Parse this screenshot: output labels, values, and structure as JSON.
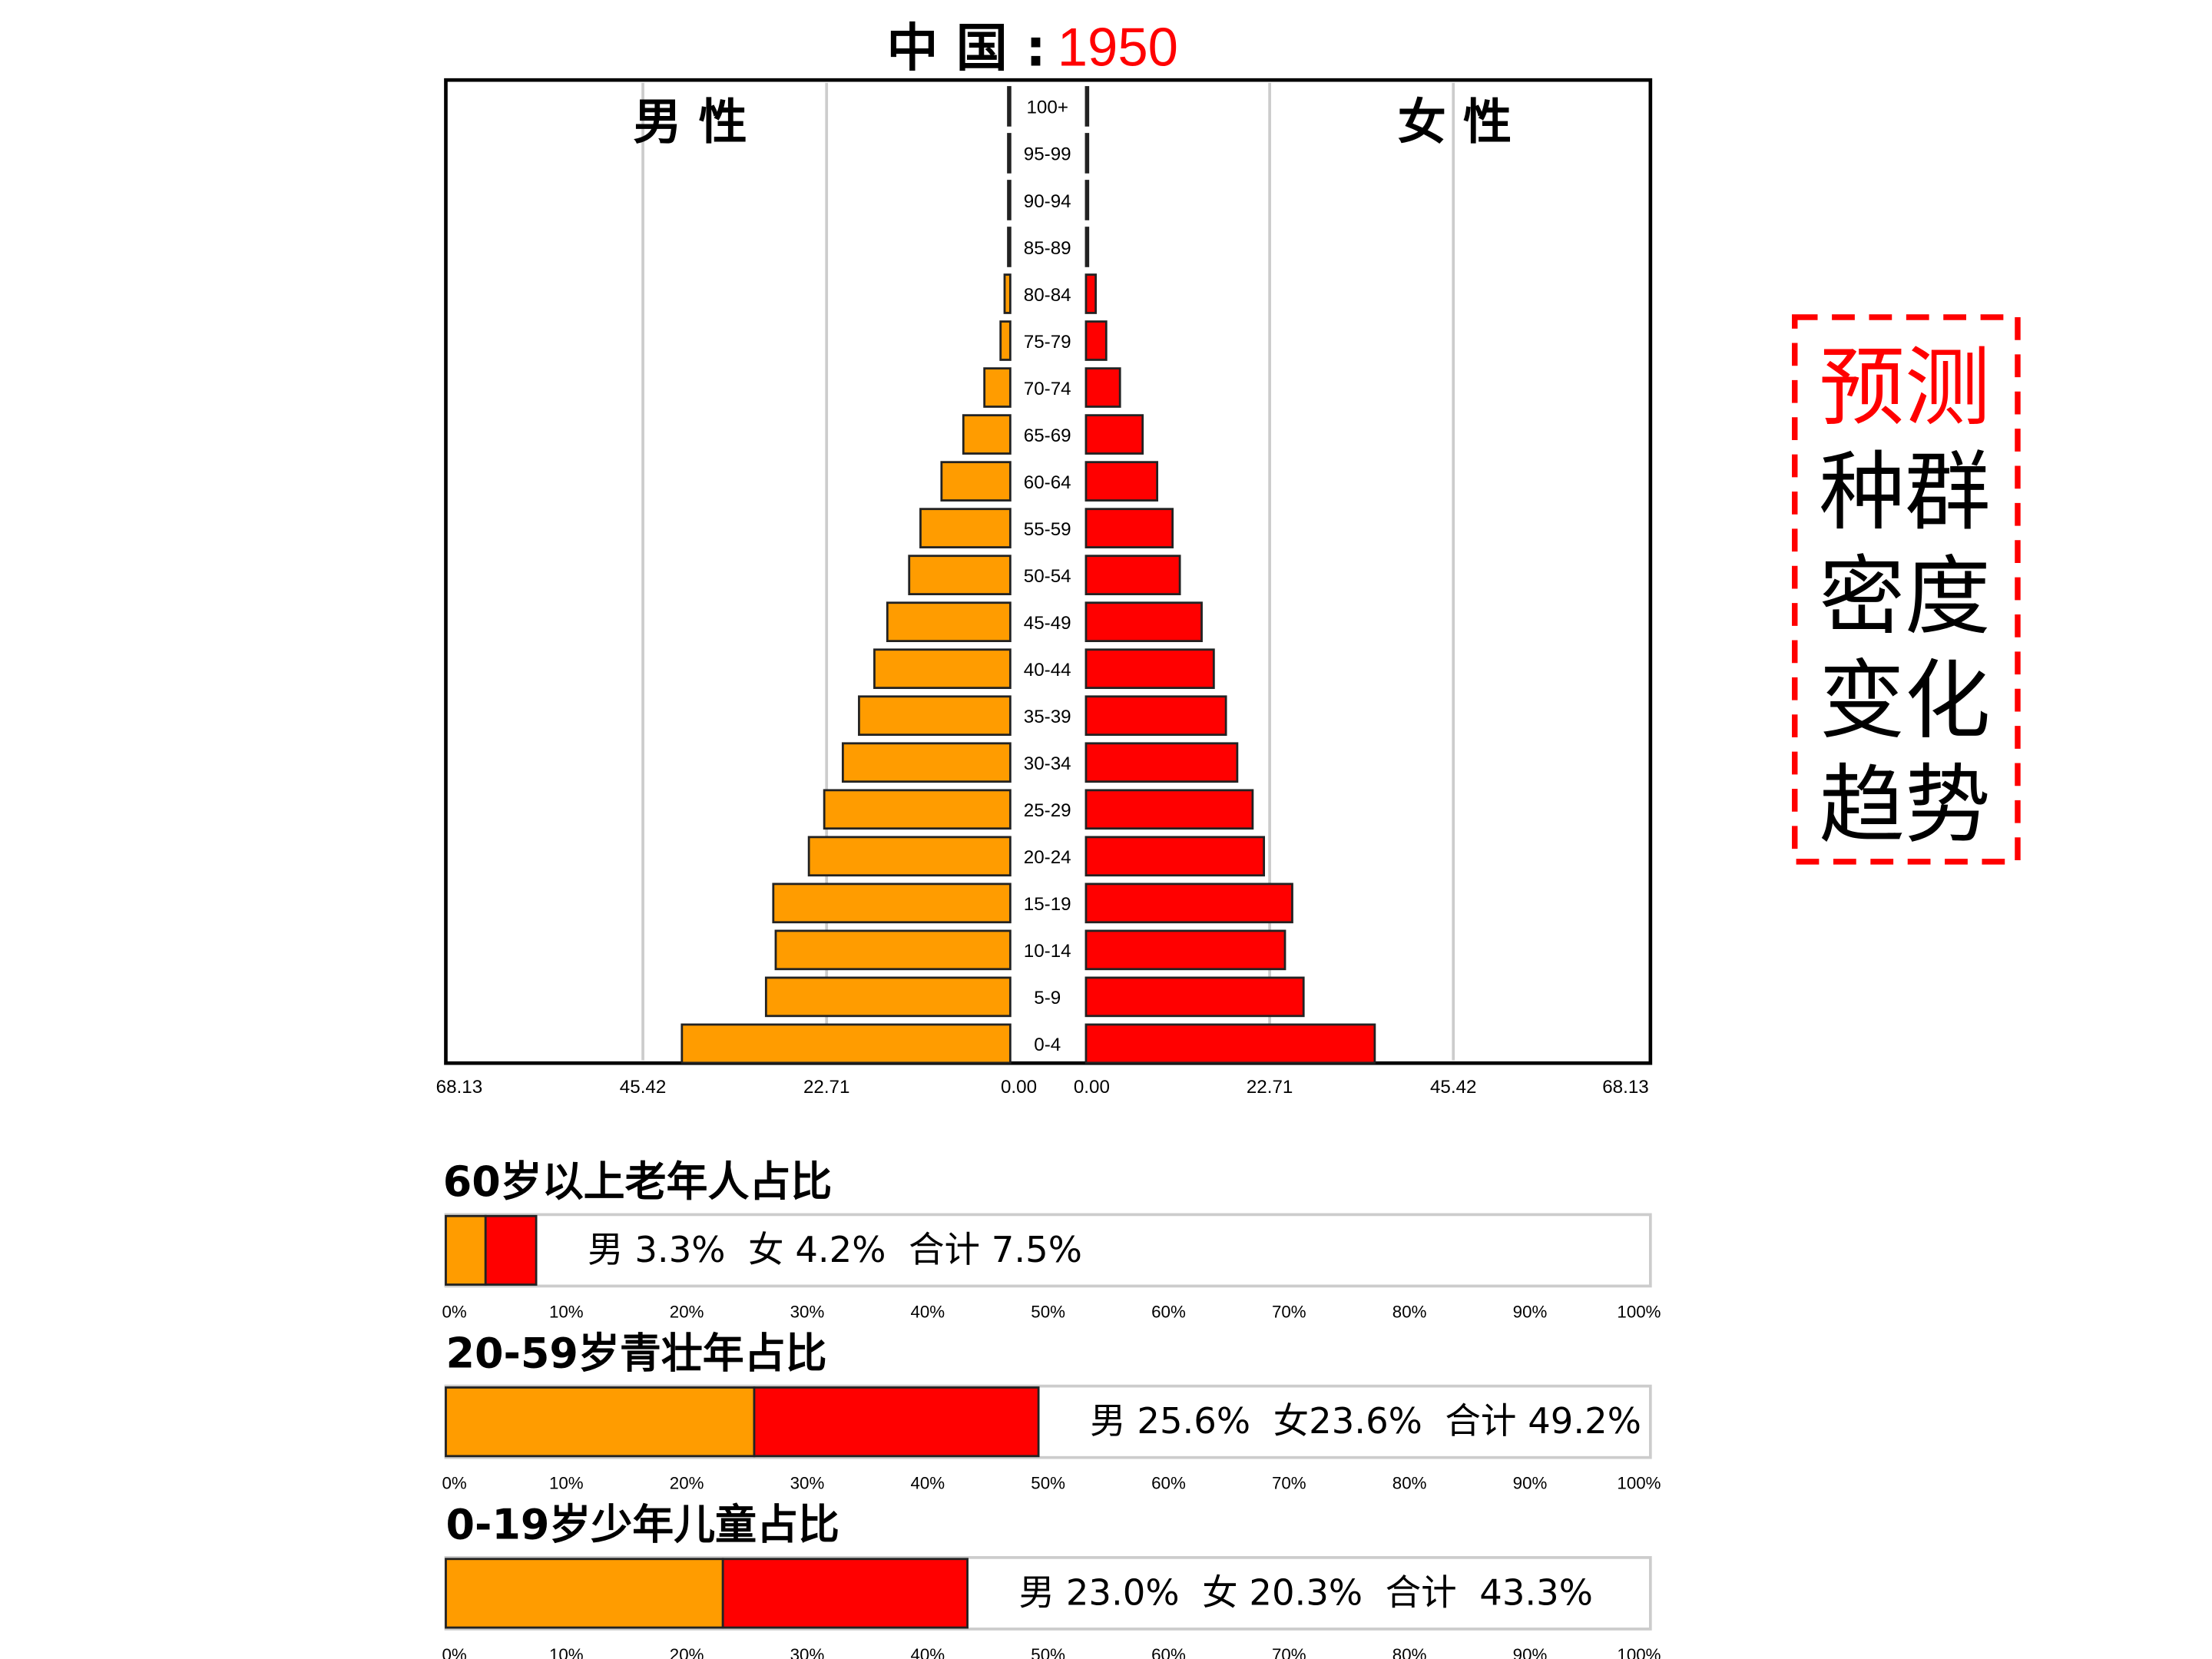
{
  "chart_data": [
    {
      "type": "bar",
      "orientation": "horizontal-pyramid",
      "title_prefix": "中 国 :",
      "title_year": "1950",
      "left_label": "男 性",
      "right_label": "女 性",
      "categories": [
        "100+",
        "95-99",
        "90-94",
        "85-89",
        "80-84",
        "75-79",
        "70-74",
        "65-69",
        "60-64",
        "55-59",
        "50-54",
        "45-49",
        "40-44",
        "35-39",
        "30-34",
        "25-29",
        "20-24",
        "15-19",
        "10-14",
        "5-9",
        "0-4"
      ],
      "series": [
        {
          "side": "left",
          "color": "#FF9C00",
          "values": [
            0,
            0,
            0,
            0,
            0.7,
            1.2,
            3.2,
            5.8,
            8.5,
            11.1,
            12.5,
            15.2,
            16.8,
            18.7,
            20.7,
            23.0,
            24.9,
            29.3,
            29.0,
            30.2,
            40.6
          ]
        },
        {
          "side": "right",
          "color": "#FF0000",
          "values": [
            0,
            0,
            0,
            0,
            1.2,
            2.5,
            4.2,
            7.0,
            8.8,
            10.7,
            11.6,
            14.3,
            15.8,
            17.3,
            18.7,
            20.6,
            22.0,
            25.5,
            24.6,
            26.9,
            35.7
          ]
        }
      ],
      "xlim": [
        0,
        68.13
      ],
      "ticks_left": [
        "68.13",
        "45.42",
        "22.71",
        "0.00"
      ],
      "ticks_right": [
        "0.00",
        "22.71",
        "45.42",
        "68.13"
      ],
      "grid": true
    },
    {
      "type": "bar",
      "orientation": "stacked-horizontal",
      "title": "60岁以上老年人占比",
      "values": [
        {
          "name": "男",
          "value": 3.3,
          "color": "#FF9C00"
        },
        {
          "name": "女",
          "value": 4.2,
          "color": "#FF0000"
        }
      ],
      "summary": "男 3.3%  女 4.2%  合计 7.5%",
      "xlim": [
        0,
        100
      ],
      "ticks": [
        "0%",
        "10%",
        "20%",
        "30%",
        "40%",
        "50%",
        "60%",
        "70%",
        "80%",
        "90%",
        "100%"
      ]
    },
    {
      "type": "bar",
      "orientation": "stacked-horizontal",
      "title": "20-59岁青壮年占比",
      "values": [
        {
          "name": "男",
          "value": 25.6,
          "color": "#FF9C00"
        },
        {
          "name": "女",
          "value": 23.6,
          "color": "#FF0000"
        }
      ],
      "summary": "男 25.6%  女23.6%  合计 49.2%",
      "xlim": [
        0,
        100
      ],
      "ticks": [
        "0%",
        "10%",
        "20%",
        "30%",
        "40%",
        "50%",
        "60%",
        "70%",
        "80%",
        "90%",
        "100%"
      ]
    },
    {
      "type": "bar",
      "orientation": "stacked-horizontal",
      "title": "0-19岁少年儿童占比",
      "values": [
        {
          "name": "男",
          "value": 23.0,
          "color": "#FF9C00"
        },
        {
          "name": "女",
          "value": 20.3,
          "color": "#FF0000"
        }
      ],
      "summary": "男 23.0%  女 20.3%  合计  43.3%",
      "xlim": [
        0,
        100
      ],
      "ticks": [
        "0%",
        "10%",
        "20%",
        "30%",
        "40%",
        "50%",
        "60%",
        "70%",
        "80%",
        "90%",
        "100%"
      ]
    }
  ],
  "callout": {
    "lines": [
      "预测",
      "种群",
      "密度",
      "变化",
      "趋势"
    ],
    "first_line_color": "#FF0000",
    "border_color": "#FF0000"
  }
}
